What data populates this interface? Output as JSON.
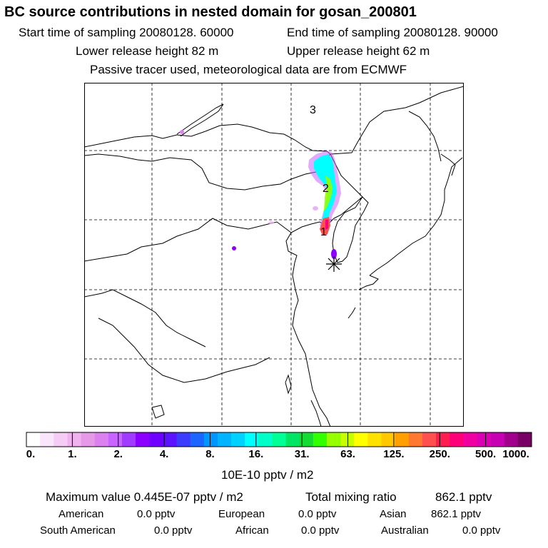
{
  "header": {
    "title": "BC  source contributions in nested domain for gosan_200801",
    "start_time": "Start time of sampling 20080128. 60000",
    "end_time": "End time of sampling 20080128. 90000",
    "lower_release": "Lower release height   82 m",
    "upper_release": "Upper release height   62 m",
    "note": "Passive tracer used, meteorological data are from ECMWF"
  },
  "map": {
    "labels": [
      "1",
      "2",
      "3"
    ],
    "receptor": "gosan-receptor-star"
  },
  "legend": {
    "ticks": [
      "0.",
      "1.",
      "2.",
      "4.",
      "8.",
      "16.",
      "31.",
      "63.",
      "125.",
      "250.",
      "500.",
      "1000."
    ],
    "colors": [
      "#ffffff",
      "#fae6fa",
      "#f5ccf5",
      "#f0b3f0",
      "#e699e6",
      "#dc80f0",
      "#c864ff",
      "#a03cff",
      "#8c00ff",
      "#6e00ff",
      "#5a14ff",
      "#3c3cff",
      "#1e64ff",
      "#0096ff",
      "#00b4ff",
      "#00d2ff",
      "#00ffff",
      "#00ffc8",
      "#00ff96",
      "#00e664",
      "#14dc32",
      "#32ff00",
      "#96ff00",
      "#c8ff00",
      "#ffff00",
      "#ffe100",
      "#ffc800",
      "#ffa000",
      "#ff7832",
      "#ff5050",
      "#ff1e50",
      "#ff0078",
      "#f000a0",
      "#dc00b4",
      "#c800b4",
      "#a0008c",
      "#780064"
    ],
    "units": "10E-10 pptv / m2"
  },
  "summary": {
    "max_label": "Maximum value  0.445E-07 pptv / m2",
    "total_label": "Total mixing ratio",
    "total_value": "862.1 pptv",
    "american_label": "American",
    "american_value": "0.0 pptv",
    "european_label": "European",
    "european_value": "0.0 pptv",
    "asian_label": "Asian",
    "asian_value": "862.1 pptv",
    "south_american_label": "South American",
    "south_american_value": "0.0 pptv",
    "african_label": "African",
    "african_value": "0.0 pptv",
    "australian_label": "Australian",
    "australian_value": "0.0 pptv"
  }
}
